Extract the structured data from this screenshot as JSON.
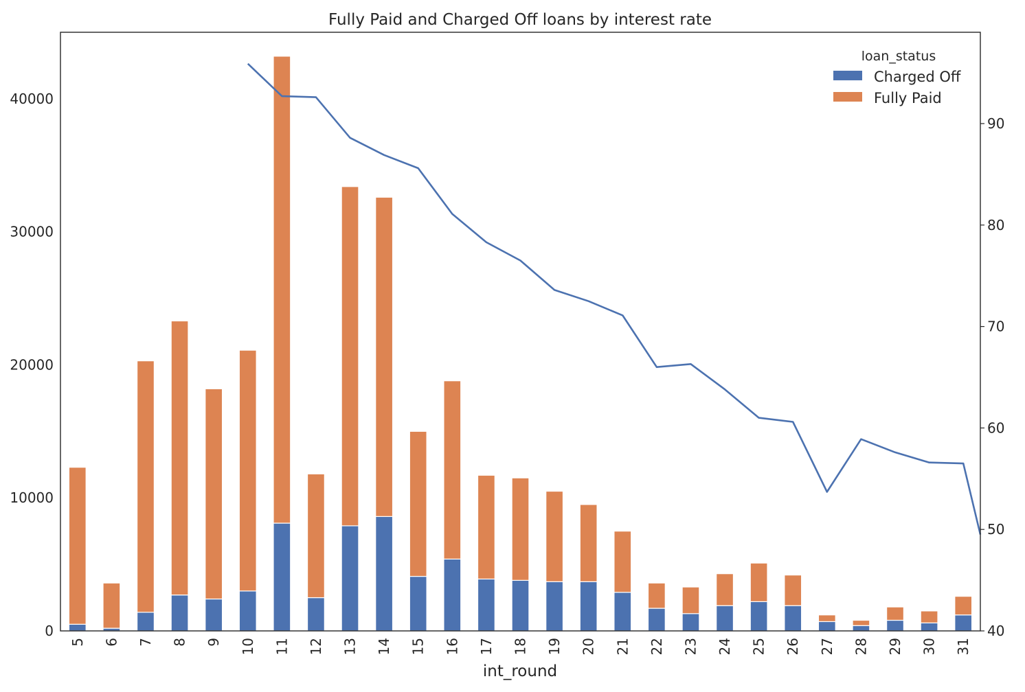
{
  "chart_data": {
    "type": "bar",
    "stacked": true,
    "title": "Fully Paid and Charged Off loans by interest rate",
    "xlabel": "int_round",
    "ylabel": "",
    "y2label": "",
    "categories": [
      "5",
      "6",
      "7",
      "8",
      "9",
      "10",
      "11",
      "12",
      "13",
      "14",
      "15",
      "16",
      "17",
      "18",
      "19",
      "20",
      "21",
      "22",
      "23",
      "24",
      "25",
      "26",
      "27",
      "28",
      "29",
      "30",
      "31"
    ],
    "ylim": [
      0,
      45000
    ],
    "y_ticks": [
      0,
      10000,
      20000,
      30000,
      40000
    ],
    "y2lim": [
      40,
      99
    ],
    "y2_ticks": [
      40,
      50,
      60,
      70,
      80,
      90
    ],
    "legend": {
      "title": "loan_status",
      "placement": "top-right"
    },
    "grid": false,
    "series": [
      {
        "name": "Charged Off",
        "color": "#4c72b0",
        "values": [
          500,
          200,
          1400,
          2700,
          2400,
          3000,
          8100,
          2500,
          7900,
          8600,
          4100,
          5400,
          3900,
          3800,
          3700,
          3700,
          2900,
          1700,
          1300,
          1900,
          2200,
          1900,
          700,
          400,
          800,
          600,
          1200
        ]
      },
      {
        "name": "Fully Paid",
        "color": "#dd8452",
        "values": [
          11800,
          3400,
          18900,
          20600,
          15800,
          18100,
          35100,
          9300,
          25500,
          24000,
          10900,
          13400,
          7800,
          7700,
          6800,
          5800,
          4600,
          1900,
          2000,
          2400,
          2900,
          2300,
          500,
          400,
          1000,
          900,
          1400
        ]
      }
    ],
    "line": {
      "color": "#4c72b0",
      "axis": "right",
      "x": [
        "10",
        "11",
        "12",
        "13",
        "14",
        "15",
        "16",
        "17",
        "18",
        "19",
        "20",
        "21",
        "22",
        "23",
        "24",
        "25",
        "26",
        "27",
        "28",
        "29",
        "30",
        "31",
        "31.5"
      ],
      "values": [
        95.9,
        92.7,
        92.6,
        88.6,
        86.9,
        85.6,
        81.1,
        78.3,
        76.5,
        73.6,
        72.5,
        71.1,
        66.0,
        66.3,
        63.8,
        61.0,
        60.6,
        53.7,
        58.9,
        57.6,
        56.6,
        56.5,
        49.5
      ]
    }
  }
}
